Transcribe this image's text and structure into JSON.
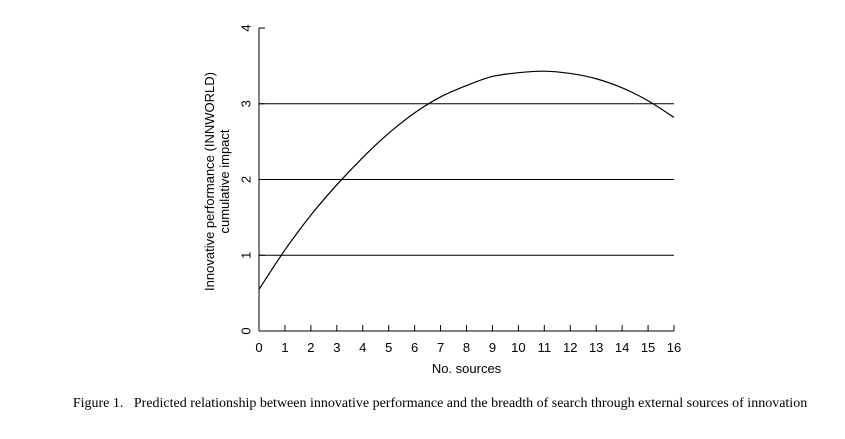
{
  "chart_data": {
    "type": "line",
    "title": "",
    "xlabel": "No. sources",
    "ylabel_line1": "Innovative performance (INNWORLD)",
    "ylabel_line2": "cumulative impact",
    "xlim": [
      0,
      16
    ],
    "ylim": [
      0,
      4
    ],
    "x_ticks": [
      "0",
      "1",
      "2",
      "3",
      "4",
      "5",
      "6",
      "7",
      "8",
      "9",
      "10",
      "11",
      "12",
      "13",
      "14",
      "15",
      "16"
    ],
    "y_ticks": [
      "0",
      "1",
      "2",
      "3",
      "4"
    ],
    "gridlines_y": [
      1,
      2,
      3
    ],
    "grid": true,
    "series": [
      {
        "x": [
          0,
          1,
          2,
          3,
          4,
          5,
          6,
          7,
          8,
          9,
          10,
          11,
          12,
          13,
          14,
          15,
          16
        ],
        "y": [
          0.55,
          1.07,
          1.53,
          1.93,
          2.29,
          2.61,
          2.88,
          3.09,
          3.24,
          3.36,
          3.41,
          3.43,
          3.4,
          3.33,
          3.21,
          3.04,
          2.82
        ]
      }
    ]
  },
  "caption": {
    "label": "Figure 1.",
    "text": "Predicted relationship between innovative performance and the breadth of search through external sources of innovation"
  }
}
